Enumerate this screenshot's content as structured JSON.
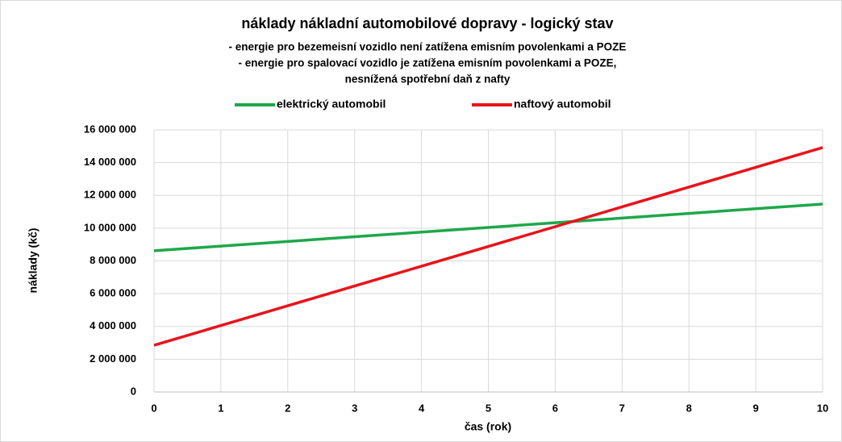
{
  "chart_data": {
    "type": "line",
    "title": "náklady nákladní automobilové dopravy - logický stav",
    "subtitle": [
      "- energie pro bezemeisní vozidlo není zatížena emisním povolenkami a POZE",
      "- energie pro spalovací vozidlo je zatížena emisním povolenkami a POZE,",
      "nesnížená spotřební daň z nafty"
    ],
    "x_label": "čas (rok)",
    "y_label": "náklady (kč)",
    "x": [
      0,
      1,
      2,
      3,
      4,
      5,
      6,
      7,
      8,
      9,
      10
    ],
    "series": [
      {
        "name": "elektrický automobil",
        "color": "#1ea84a",
        "values": [
          8620000,
          8905000,
          9190000,
          9475000,
          9760000,
          10045000,
          10330000,
          10615000,
          10900000,
          11185000,
          11470000
        ]
      },
      {
        "name": "naftový automobil",
        "color": "#e8141b",
        "values": [
          2850000,
          4057000,
          5264000,
          6471000,
          7678000,
          8885000,
          10092000,
          11299000,
          12506000,
          13713000,
          14920000
        ]
      }
    ],
    "xlim": [
      0,
      10
    ],
    "xticks": [
      0,
      1,
      2,
      3,
      4,
      5,
      6,
      7,
      8,
      9,
      10
    ],
    "ylim": [
      0,
      16000000
    ],
    "yticks": [
      0,
      {
        "value": 2000000,
        "label": "2 000 000"
      },
      {
        "value": 4000000,
        "label": "4 000 000"
      },
      {
        "value": 6000000,
        "label": "6 000 000"
      },
      {
        "value": 8000000,
        "label": "8 000 000"
      },
      {
        "value": 10000000,
        "label": "10 000 000"
      },
      {
        "value": 12000000,
        "label": "12 000 000"
      },
      {
        "value": 14000000,
        "label": "14 000 000"
      },
      {
        "value": 16000000,
        "label": "16 000 000"
      }
    ],
    "grid": true,
    "legend": "top"
  }
}
